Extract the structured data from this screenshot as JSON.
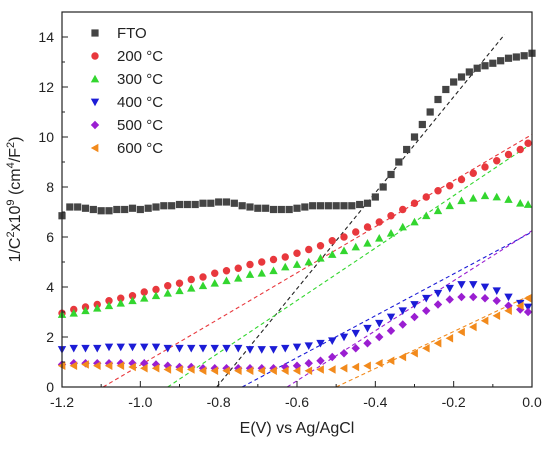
{
  "chart_data": {
    "type": "scatter",
    "title": "",
    "xlabel": "E(V) vs Ag/AgCl",
    "ylabel": {
      "prefix": "1/C",
      "sup1": "2",
      "mid": "x10",
      "sup2": "9",
      "unit_open": " (cm",
      "sup3": "4",
      "unit_mid": "/F",
      "sup4": "2",
      "unit_close": ")"
    },
    "xlim": [
      -1.2,
      0.0
    ],
    "ylim": [
      0,
      15
    ],
    "x_ticks": [
      {
        "value": -1.2,
        "label": "-1.2"
      },
      {
        "value": -1.0,
        "label": "-1.0"
      },
      {
        "value": -0.8,
        "label": "-0.8"
      },
      {
        "value": -0.6,
        "label": "-0.6"
      },
      {
        "value": -0.4,
        "label": "-0.4"
      },
      {
        "value": -0.2,
        "label": "-0.2"
      },
      {
        "value": 0.0,
        "label": "0.0"
      }
    ],
    "y_ticks": [
      {
        "value": 0,
        "label": "0"
      },
      {
        "value": 2,
        "label": "2"
      },
      {
        "value": 4,
        "label": "4"
      },
      {
        "value": 6,
        "label": "6"
      },
      {
        "value": 8,
        "label": "8"
      },
      {
        "value": 10,
        "label": "10"
      },
      {
        "value": 12,
        "label": "12"
      },
      {
        "value": 14,
        "label": "14"
      }
    ],
    "legend_position": "top-left",
    "series": [
      {
        "name": "FTO",
        "marker": "square",
        "color": "#444444",
        "points": [
          [
            -1.2,
            6.85
          ],
          [
            -1.18,
            7.2
          ],
          [
            -1.16,
            7.2
          ],
          [
            -1.14,
            7.15
          ],
          [
            -1.12,
            7.1
          ],
          [
            -1.1,
            7.05
          ],
          [
            -1.08,
            7.05
          ],
          [
            -1.06,
            7.1
          ],
          [
            -1.04,
            7.1
          ],
          [
            -1.02,
            7.15
          ],
          [
            -1.0,
            7.1
          ],
          [
            -0.98,
            7.15
          ],
          [
            -0.96,
            7.2
          ],
          [
            -0.94,
            7.25
          ],
          [
            -0.92,
            7.25
          ],
          [
            -0.9,
            7.3
          ],
          [
            -0.88,
            7.3
          ],
          [
            -0.86,
            7.3
          ],
          [
            -0.84,
            7.35
          ],
          [
            -0.82,
            7.35
          ],
          [
            -0.8,
            7.4
          ],
          [
            -0.78,
            7.4
          ],
          [
            -0.76,
            7.35
          ],
          [
            -0.74,
            7.25
          ],
          [
            -0.72,
            7.2
          ],
          [
            -0.7,
            7.15
          ],
          [
            -0.68,
            7.15
          ],
          [
            -0.66,
            7.1
          ],
          [
            -0.64,
            7.1
          ],
          [
            -0.62,
            7.1
          ],
          [
            -0.6,
            7.15
          ],
          [
            -0.58,
            7.2
          ],
          [
            -0.56,
            7.25
          ],
          [
            -0.54,
            7.25
          ],
          [
            -0.52,
            7.25
          ],
          [
            -0.5,
            7.25
          ],
          [
            -0.48,
            7.25
          ],
          [
            -0.46,
            7.25
          ],
          [
            -0.44,
            7.3
          ],
          [
            -0.42,
            7.35
          ],
          [
            -0.4,
            7.6
          ],
          [
            -0.38,
            8.0
          ],
          [
            -0.36,
            8.5
          ],
          [
            -0.34,
            9.0
          ],
          [
            -0.32,
            9.5
          ],
          [
            -0.3,
            10.0
          ],
          [
            -0.28,
            10.5
          ],
          [
            -0.26,
            11.0
          ],
          [
            -0.24,
            11.5
          ],
          [
            -0.22,
            11.9
          ],
          [
            -0.2,
            12.2
          ],
          [
            -0.18,
            12.4
          ],
          [
            -0.16,
            12.6
          ],
          [
            -0.14,
            12.75
          ],
          [
            -0.12,
            12.85
          ],
          [
            -0.1,
            12.95
          ],
          [
            -0.08,
            13.05
          ],
          [
            -0.06,
            13.15
          ],
          [
            -0.04,
            13.2
          ],
          [
            -0.02,
            13.25
          ],
          [
            0.0,
            13.35
          ]
        ]
      },
      {
        "name": "200 °C",
        "marker": "circle",
        "color": "#e8383d",
        "points": [
          [
            -1.2,
            2.95
          ],
          [
            -1.17,
            3.1
          ],
          [
            -1.14,
            3.2
          ],
          [
            -1.11,
            3.3
          ],
          [
            -1.08,
            3.45
          ],
          [
            -1.05,
            3.55
          ],
          [
            -1.02,
            3.65
          ],
          [
            -0.99,
            3.8
          ],
          [
            -0.96,
            3.9
          ],
          [
            -0.93,
            4.05
          ],
          [
            -0.9,
            4.15
          ],
          [
            -0.87,
            4.3
          ],
          [
            -0.84,
            4.4
          ],
          [
            -0.81,
            4.55
          ],
          [
            -0.78,
            4.65
          ],
          [
            -0.75,
            4.75
          ],
          [
            -0.72,
            4.9
          ],
          [
            -0.69,
            5.0
          ],
          [
            -0.66,
            5.1
          ],
          [
            -0.63,
            5.2
          ],
          [
            -0.6,
            5.35
          ],
          [
            -0.57,
            5.5
          ],
          [
            -0.54,
            5.65
          ],
          [
            -0.51,
            5.85
          ],
          [
            -0.48,
            6.0
          ],
          [
            -0.45,
            6.2
          ],
          [
            -0.42,
            6.4
          ],
          [
            -0.39,
            6.6
          ],
          [
            -0.36,
            6.85
          ],
          [
            -0.33,
            7.1
          ],
          [
            -0.3,
            7.35
          ],
          [
            -0.27,
            7.6
          ],
          [
            -0.24,
            7.85
          ],
          [
            -0.21,
            8.05
          ],
          [
            -0.18,
            8.3
          ],
          [
            -0.15,
            8.55
          ],
          [
            -0.12,
            8.8
          ],
          [
            -0.09,
            9.05
          ],
          [
            -0.06,
            9.3
          ],
          [
            -0.03,
            9.5
          ],
          [
            -0.01,
            9.75
          ]
        ]
      },
      {
        "name": "300 °C",
        "marker": "triangle-up",
        "color": "#33d62f",
        "points": [
          [
            -1.2,
            2.9
          ],
          [
            -1.17,
            2.95
          ],
          [
            -1.14,
            3.05
          ],
          [
            -1.11,
            3.15
          ],
          [
            -1.08,
            3.25
          ],
          [
            -1.05,
            3.35
          ],
          [
            -1.02,
            3.45
          ],
          [
            -0.99,
            3.55
          ],
          [
            -0.96,
            3.65
          ],
          [
            -0.93,
            3.75
          ],
          [
            -0.9,
            3.85
          ],
          [
            -0.87,
            3.95
          ],
          [
            -0.84,
            4.05
          ],
          [
            -0.81,
            4.15
          ],
          [
            -0.78,
            4.25
          ],
          [
            -0.75,
            4.35
          ],
          [
            -0.72,
            4.5
          ],
          [
            -0.69,
            4.55
          ],
          [
            -0.66,
            4.65
          ],
          [
            -0.63,
            4.8
          ],
          [
            -0.6,
            4.9
          ],
          [
            -0.57,
            5.0
          ],
          [
            -0.54,
            5.15
          ],
          [
            -0.51,
            5.3
          ],
          [
            -0.48,
            5.45
          ],
          [
            -0.45,
            5.6
          ],
          [
            -0.42,
            5.75
          ],
          [
            -0.39,
            5.95
          ],
          [
            -0.36,
            6.15
          ],
          [
            -0.33,
            6.4
          ],
          [
            -0.3,
            6.6
          ],
          [
            -0.27,
            6.85
          ],
          [
            -0.24,
            7.05
          ],
          [
            -0.21,
            7.25
          ],
          [
            -0.18,
            7.45
          ],
          [
            -0.15,
            7.55
          ],
          [
            -0.12,
            7.65
          ],
          [
            -0.09,
            7.6
          ],
          [
            -0.06,
            7.5
          ],
          [
            -0.03,
            7.35
          ],
          [
            -0.01,
            7.3
          ]
        ]
      },
      {
        "name": "400 °C",
        "marker": "triangle-down",
        "color": "#1c1cd6",
        "points": [
          [
            -1.2,
            1.5
          ],
          [
            -1.17,
            1.55
          ],
          [
            -1.14,
            1.55
          ],
          [
            -1.11,
            1.55
          ],
          [
            -1.08,
            1.6
          ],
          [
            -1.05,
            1.6
          ],
          [
            -1.02,
            1.6
          ],
          [
            -0.99,
            1.6
          ],
          [
            -0.96,
            1.6
          ],
          [
            -0.93,
            1.55
          ],
          [
            -0.9,
            1.55
          ],
          [
            -0.87,
            1.55
          ],
          [
            -0.84,
            1.55
          ],
          [
            -0.81,
            1.55
          ],
          [
            -0.78,
            1.55
          ],
          [
            -0.75,
            1.55
          ],
          [
            -0.72,
            1.5
          ],
          [
            -0.69,
            1.5
          ],
          [
            -0.66,
            1.5
          ],
          [
            -0.63,
            1.55
          ],
          [
            -0.6,
            1.6
          ],
          [
            -0.57,
            1.65
          ],
          [
            -0.54,
            1.75
          ],
          [
            -0.51,
            1.85
          ],
          [
            -0.48,
            2.0
          ],
          [
            -0.45,
            2.15
          ],
          [
            -0.42,
            2.35
          ],
          [
            -0.39,
            2.55
          ],
          [
            -0.36,
            2.8
          ],
          [
            -0.33,
            3.05
          ],
          [
            -0.3,
            3.3
          ],
          [
            -0.27,
            3.55
          ],
          [
            -0.24,
            3.75
          ],
          [
            -0.21,
            3.95
          ],
          [
            -0.18,
            4.1
          ],
          [
            -0.15,
            4.1
          ],
          [
            -0.12,
            4.0
          ],
          [
            -0.09,
            3.85
          ],
          [
            -0.06,
            3.6
          ],
          [
            -0.03,
            3.35
          ],
          [
            -0.01,
            3.2
          ]
        ]
      },
      {
        "name": "500 °C",
        "marker": "diamond",
        "color": "#9a1ed1",
        "points": [
          [
            -1.2,
            0.9
          ],
          [
            -1.17,
            0.95
          ],
          [
            -1.14,
            0.95
          ],
          [
            -1.11,
            0.95
          ],
          [
            -1.08,
            0.95
          ],
          [
            -1.05,
            0.95
          ],
          [
            -1.02,
            0.95
          ],
          [
            -0.99,
            0.95
          ],
          [
            -0.96,
            0.9
          ],
          [
            -0.93,
            0.85
          ],
          [
            -0.9,
            0.8
          ],
          [
            -0.87,
            0.8
          ],
          [
            -0.84,
            0.75
          ],
          [
            -0.81,
            0.75
          ],
          [
            -0.78,
            0.75
          ],
          [
            -0.75,
            0.75
          ],
          [
            -0.72,
            0.75
          ],
          [
            -0.69,
            0.75
          ],
          [
            -0.66,
            0.75
          ],
          [
            -0.63,
            0.8
          ],
          [
            -0.6,
            0.85
          ],
          [
            -0.57,
            0.95
          ],
          [
            -0.54,
            1.05
          ],
          [
            -0.51,
            1.2
          ],
          [
            -0.48,
            1.35
          ],
          [
            -0.45,
            1.55
          ],
          [
            -0.42,
            1.75
          ],
          [
            -0.39,
            2.0
          ],
          [
            -0.36,
            2.25
          ],
          [
            -0.33,
            2.5
          ],
          [
            -0.3,
            2.8
          ],
          [
            -0.27,
            3.05
          ],
          [
            -0.24,
            3.3
          ],
          [
            -0.21,
            3.5
          ],
          [
            -0.18,
            3.6
          ],
          [
            -0.15,
            3.6
          ],
          [
            -0.12,
            3.55
          ],
          [
            -0.09,
            3.45
          ],
          [
            -0.06,
            3.25
          ],
          [
            -0.03,
            3.1
          ],
          [
            -0.01,
            3.0
          ]
        ]
      },
      {
        "name": "600 °C",
        "marker": "triangle-left",
        "color": "#f28a1c",
        "points": [
          [
            -1.2,
            0.85
          ],
          [
            -1.17,
            0.85
          ],
          [
            -1.14,
            0.9
          ],
          [
            -1.11,
            0.85
          ],
          [
            -1.08,
            0.85
          ],
          [
            -1.05,
            0.85
          ],
          [
            -1.02,
            0.8
          ],
          [
            -0.99,
            0.75
          ],
          [
            -0.96,
            0.75
          ],
          [
            -0.93,
            0.7
          ],
          [
            -0.9,
            0.7
          ],
          [
            -0.87,
            0.7
          ],
          [
            -0.84,
            0.65
          ],
          [
            -0.81,
            0.65
          ],
          [
            -0.78,
            0.65
          ],
          [
            -0.75,
            0.65
          ],
          [
            -0.72,
            0.65
          ],
          [
            -0.69,
            0.65
          ],
          [
            -0.66,
            0.65
          ],
          [
            -0.63,
            0.65
          ],
          [
            -0.6,
            0.65
          ],
          [
            -0.57,
            0.65
          ],
          [
            -0.54,
            0.7
          ],
          [
            -0.51,
            0.7
          ],
          [
            -0.48,
            0.75
          ],
          [
            -0.45,
            0.8
          ],
          [
            -0.42,
            0.85
          ],
          [
            -0.39,
            0.95
          ],
          [
            -0.36,
            1.05
          ],
          [
            -0.33,
            1.2
          ],
          [
            -0.3,
            1.35
          ],
          [
            -0.27,
            1.55
          ],
          [
            -0.24,
            1.75
          ],
          [
            -0.21,
            1.95
          ],
          [
            -0.18,
            2.2
          ],
          [
            -0.15,
            2.4
          ],
          [
            -0.12,
            2.65
          ],
          [
            -0.09,
            2.85
          ],
          [
            -0.06,
            3.05
          ],
          [
            -0.03,
            3.25
          ],
          [
            -0.01,
            3.55
          ]
        ]
      }
    ],
    "fit_lines": [
      {
        "series": "FTO",
        "color": "#222222",
        "from": [
          -0.805,
          0
        ],
        "to": [
          -0.07,
          14.1
        ]
      },
      {
        "series": "200 °C",
        "color": "#e8383d",
        "from": [
          -1.095,
          0
        ],
        "to": [
          0.0,
          10.1
        ]
      },
      {
        "series": "300 °C",
        "color": "#33d62f",
        "from": [
          -0.93,
          0
        ],
        "to": [
          0.0,
          9.75
        ]
      },
      {
        "series": "400 °C",
        "color": "#1c1cd6",
        "from": [
          -0.74,
          0
        ],
        "to": [
          0.0,
          6.2
        ]
      },
      {
        "series": "500 °C",
        "color": "#9a1ed1",
        "from": [
          -0.625,
          0
        ],
        "to": [
          0.0,
          6.25
        ]
      },
      {
        "series": "600 °C",
        "color": "#f28a1c",
        "from": [
          -0.5,
          0
        ],
        "to": [
          0.0,
          3.7
        ]
      }
    ]
  }
}
